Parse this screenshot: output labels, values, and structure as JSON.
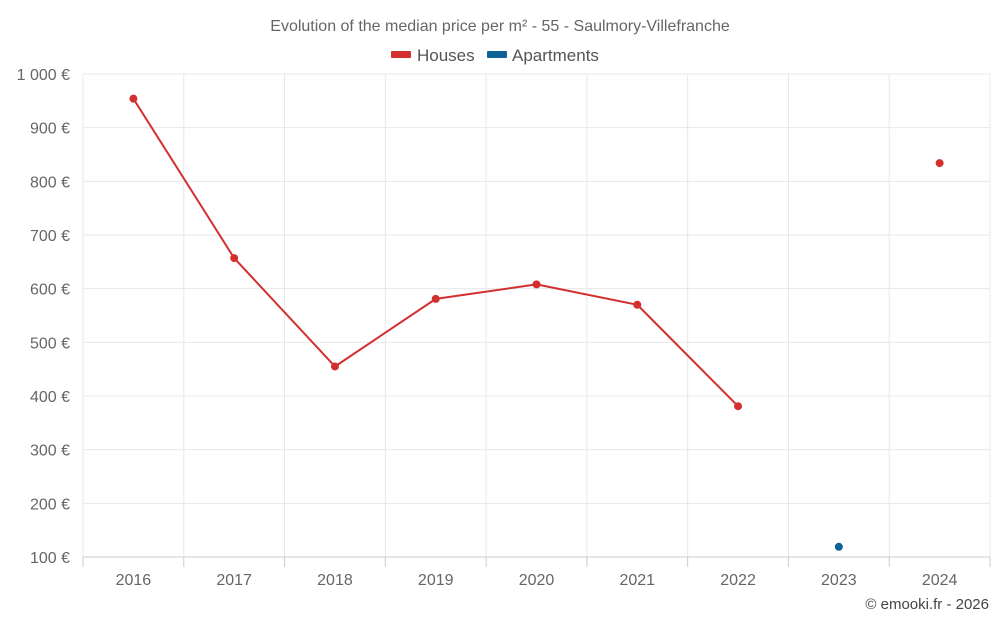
{
  "chart_data": {
    "type": "line",
    "title": "Evolution of the median price per m² - 55 - Saulmory-Villefranche",
    "categories": [
      "2016",
      "2017",
      "2018",
      "2019",
      "2020",
      "2021",
      "2022",
      "2023",
      "2024"
    ],
    "series": [
      {
        "name": "Houses",
        "color": "#d32f2f",
        "values": [
          954,
          657,
          455,
          581,
          608,
          570,
          381,
          null,
          834
        ]
      },
      {
        "name": "Apartments",
        "color": "#0d6195",
        "values": [
          null,
          null,
          null,
          null,
          null,
          null,
          null,
          119,
          null
        ]
      }
    ],
    "y_ticks": [
      100,
      200,
      300,
      400,
      500,
      600,
      700,
      800,
      900,
      1000
    ],
    "y_tick_labels": [
      "100 €",
      "200 €",
      "300 €",
      "400 €",
      "500 €",
      "600 €",
      "700 €",
      "800 €",
      "900 €",
      "1 000 €"
    ],
    "ylim": [
      100,
      1000
    ],
    "xlabel": "",
    "ylabel": "",
    "grid": true,
    "legend_position": "top-center",
    "credit": "© emooki.fr - 2026"
  }
}
